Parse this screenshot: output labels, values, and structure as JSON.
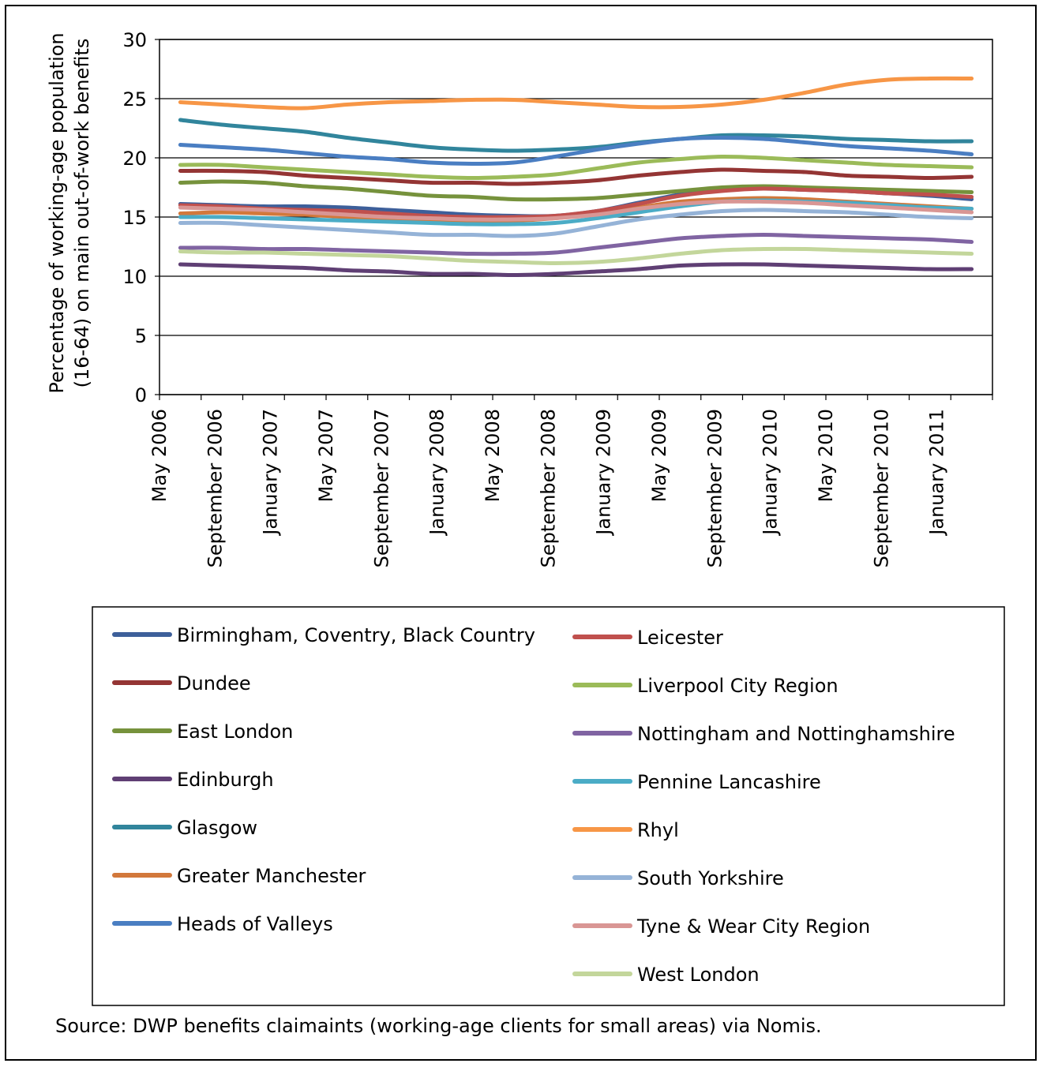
{
  "chart_data": {
    "type": "line",
    "ylabel_lines": [
      "Percentage of working-age population",
      "(16-64) on main out-of-work benefits"
    ],
    "ylim": [
      0,
      30
    ],
    "yticks": [
      0,
      5,
      10,
      15,
      20,
      25,
      30
    ],
    "grid": "horizontal",
    "legend_position": "bottom",
    "source": "Source: DWP benefits claimaints (working-age clients for small areas) via Nomis.",
    "x": [
      "May 2006",
      "August 2006",
      "November 2006",
      "February 2007",
      "May 2007",
      "August 2007",
      "November 2007",
      "February 2008",
      "May 2008",
      "August 2008",
      "November 2008",
      "February 2009",
      "May 2009",
      "August 2009",
      "November 2009",
      "February 2010",
      "May 2010",
      "August 2010",
      "November 2010",
      "February 2011"
    ],
    "xtick_labels": [
      "May 2006",
      "September 2006",
      "January 2007",
      "May 2007",
      "September 2007",
      "January 2008",
      "May 2008",
      "September 2008",
      "January 2009",
      "May 2009",
      "September 2009",
      "January 2010",
      "May 2010",
      "September 2010",
      "January 2011"
    ],
    "series": [
      {
        "name": "Birmingham, Coventry,  Black Country",
        "color": "#3d5f9a",
        "values": [
          16.1,
          16.0,
          15.9,
          15.9,
          15.8,
          15.6,
          15.4,
          15.2,
          15.1,
          15.1,
          15.5,
          16.2,
          16.9,
          17.3,
          17.4,
          17.3,
          17.2,
          17.0,
          16.8,
          16.5
        ]
      },
      {
        "name": "Dundee",
        "color": "#943534",
        "values": [
          18.9,
          18.9,
          18.8,
          18.5,
          18.3,
          18.1,
          17.9,
          17.9,
          17.8,
          17.9,
          18.1,
          18.5,
          18.8,
          19.0,
          18.9,
          18.8,
          18.5,
          18.4,
          18.3,
          18.4
        ]
      },
      {
        "name": "East London",
        "color": "#76923c",
        "values": [
          17.9,
          18.0,
          17.9,
          17.6,
          17.4,
          17.1,
          16.8,
          16.7,
          16.5,
          16.5,
          16.6,
          16.9,
          17.2,
          17.5,
          17.6,
          17.5,
          17.4,
          17.3,
          17.2,
          17.1
        ]
      },
      {
        "name": "Edinburgh",
        "color": "#5f3f74",
        "values": [
          11.0,
          10.9,
          10.8,
          10.7,
          10.5,
          10.4,
          10.2,
          10.2,
          10.1,
          10.2,
          10.4,
          10.6,
          10.9,
          11.0,
          11.0,
          10.9,
          10.8,
          10.7,
          10.6,
          10.6
        ]
      },
      {
        "name": "Glasgow",
        "color": "#31859c",
        "values": [
          23.2,
          22.8,
          22.5,
          22.2,
          21.7,
          21.3,
          20.9,
          20.7,
          20.6,
          20.7,
          20.9,
          21.3,
          21.6,
          21.9,
          21.9,
          21.8,
          21.6,
          21.5,
          21.4,
          21.4
        ]
      },
      {
        "name": "Greater Manchester",
        "color": "#d2783b",
        "values": [
          15.3,
          15.4,
          15.3,
          15.2,
          15.0,
          14.8,
          14.7,
          14.7,
          14.7,
          14.9,
          15.3,
          15.8,
          16.3,
          16.5,
          16.6,
          16.5,
          16.3,
          16.1,
          15.9,
          15.7
        ]
      },
      {
        "name": "Heads of Valleys",
        "color": "#4a7ec2",
        "values": [
          21.1,
          20.9,
          20.7,
          20.4,
          20.1,
          19.9,
          19.6,
          19.5,
          19.6,
          20.1,
          20.7,
          21.2,
          21.6,
          21.7,
          21.6,
          21.3,
          21.0,
          20.8,
          20.6,
          20.3
        ]
      },
      {
        "name": "Leicester",
        "color": "#c0504d",
        "values": [
          16.0,
          15.9,
          15.7,
          15.6,
          15.5,
          15.3,
          15.1,
          15.0,
          15.0,
          15.1,
          15.5,
          16.1,
          16.8,
          17.2,
          17.4,
          17.3,
          17.2,
          17.0,
          16.9,
          16.7
        ]
      },
      {
        "name": "Liverpool City Region",
        "color": "#9bbb59",
        "values": [
          19.4,
          19.4,
          19.2,
          19.0,
          18.8,
          18.6,
          18.4,
          18.3,
          18.4,
          18.6,
          19.1,
          19.6,
          19.9,
          20.1,
          20.0,
          19.8,
          19.6,
          19.4,
          19.3,
          19.2
        ]
      },
      {
        "name": "Nottingham and Nottinghamshire",
        "color": "#8064a2",
        "values": [
          12.4,
          12.4,
          12.3,
          12.3,
          12.2,
          12.1,
          12.0,
          11.9,
          11.9,
          12.0,
          12.4,
          12.8,
          13.2,
          13.4,
          13.5,
          13.4,
          13.3,
          13.2,
          13.1,
          12.9
        ]
      },
      {
        "name": "Pennine Lancashire",
        "color": "#4bacc6",
        "values": [
          15.0,
          15.0,
          14.9,
          14.8,
          14.7,
          14.6,
          14.5,
          14.4,
          14.4,
          14.5,
          14.9,
          15.4,
          15.9,
          16.3,
          16.4,
          16.3,
          16.2,
          16.0,
          15.8,
          15.7
        ]
      },
      {
        "name": "Rhyl",
        "color": "#f79646",
        "values": [
          24.7,
          24.5,
          24.3,
          24.2,
          24.5,
          24.7,
          24.8,
          24.9,
          24.9,
          24.7,
          24.5,
          24.3,
          24.3,
          24.5,
          24.9,
          25.5,
          26.2,
          26.6,
          26.7,
          26.7
        ]
      },
      {
        "name": "South Yorkshire",
        "color": "#95b3d7",
        "values": [
          14.5,
          14.5,
          14.3,
          14.1,
          13.9,
          13.7,
          13.5,
          13.5,
          13.4,
          13.6,
          14.2,
          14.8,
          15.2,
          15.5,
          15.6,
          15.5,
          15.4,
          15.2,
          15.0,
          14.9
        ]
      },
      {
        "name": "Tyne & Wear City Region",
        "color": "#d99694",
        "values": [
          15.8,
          15.7,
          15.6,
          15.4,
          15.2,
          15.0,
          14.9,
          14.8,
          14.8,
          14.9,
          15.2,
          15.7,
          16.1,
          16.3,
          16.3,
          16.2,
          16.0,
          15.8,
          15.6,
          15.4
        ]
      },
      {
        "name": "West London",
        "color": "#c3d69b",
        "values": [
          12.1,
          12.0,
          12.0,
          11.9,
          11.8,
          11.7,
          11.5,
          11.3,
          11.2,
          11.1,
          11.2,
          11.5,
          11.9,
          12.2,
          12.3,
          12.3,
          12.2,
          12.1,
          12.0,
          11.9
        ]
      }
    ]
  }
}
